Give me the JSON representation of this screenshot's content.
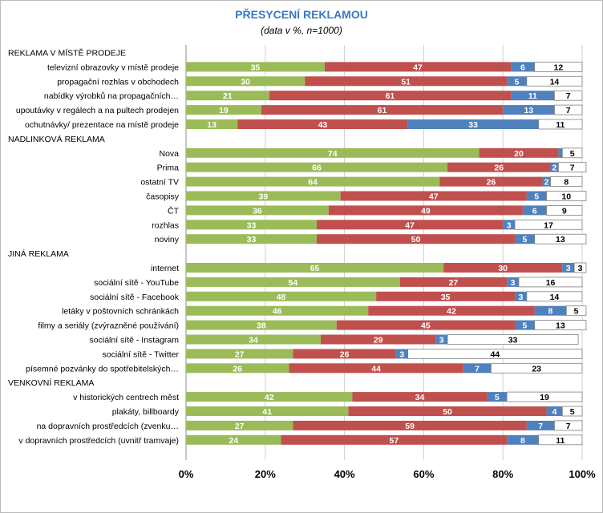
{
  "chart_data": {
    "type": "bar",
    "orientation": "horizontal",
    "stacked": true,
    "title": "PŘESYCENÍ REKLAMOU",
    "subtitle": "(data v %, n=1000)",
    "xlim": [
      0,
      100
    ],
    "x_ticks": [
      "0%",
      "20%",
      "40%",
      "60%",
      "80%",
      "100%"
    ],
    "grid": true,
    "legend": "none",
    "colors": [
      "#9bbb59",
      "#c0504d",
      "#4f81bd",
      "#ffffff"
    ],
    "rows": [
      {
        "label": "REKLAMA V MÍSTĚ PRODEJE",
        "header": true
      },
      {
        "label": "televizní obrazovky v místě prodeje",
        "values": [
          35,
          47,
          6,
          12
        ]
      },
      {
        "label": "propagační rozhlas v obchodech",
        "values": [
          30,
          51,
          5,
          14
        ]
      },
      {
        "label": "nabídky výrobků na propagačních…",
        "values": [
          21,
          61,
          11,
          7
        ]
      },
      {
        "label": "upoutávky v regálech a na pultech prodejen",
        "values": [
          19,
          61,
          13,
          7
        ]
      },
      {
        "label": "ochutnávky/ prezentace na místě prodeje",
        "values": [
          13,
          43,
          33,
          11
        ]
      },
      {
        "label": "NADLINKOVÁ REKLAMA",
        "header": true
      },
      {
        "label": "Nova",
        "values": [
          74,
          20,
          1,
          5
        ]
      },
      {
        "label": "Prima",
        "values": [
          66,
          26,
          2,
          7
        ]
      },
      {
        "label": "ostatní TV",
        "values": [
          64,
          26,
          2,
          8
        ]
      },
      {
        "label": "časopisy",
        "values": [
          39,
          47,
          5,
          10
        ]
      },
      {
        "label": "ČT",
        "values": [
          36,
          49,
          6,
          9
        ]
      },
      {
        "label": "rozhlas",
        "values": [
          33,
          47,
          3,
          17
        ]
      },
      {
        "label": "noviny",
        "values": [
          33,
          50,
          5,
          13
        ]
      },
      {
        "label": "JINÁ REKLAMA",
        "header": true
      },
      {
        "label": "internet",
        "values": [
          65,
          30,
          3,
          3
        ]
      },
      {
        "label": "sociální sítě - YouTube",
        "values": [
          54,
          27,
          3,
          16
        ]
      },
      {
        "label": "sociální sítě - Facebook",
        "values": [
          48,
          35,
          3,
          14
        ]
      },
      {
        "label": "letáky v poštovních schránkách",
        "values": [
          46,
          42,
          8,
          5
        ]
      },
      {
        "label": "filmy a seriály (zvýrazněné používání)",
        "values": [
          38,
          45,
          5,
          13
        ]
      },
      {
        "label": "sociální sítě - Instagram",
        "values": [
          34,
          29,
          3,
          33
        ]
      },
      {
        "label": "sociální sítě - Twitter",
        "values": [
          27,
          26,
          3,
          44
        ]
      },
      {
        "label": "písemné pozvánky do spotřebitelských…",
        "values": [
          26,
          44,
          7,
          23
        ]
      },
      {
        "label": "VENKOVNÍ REKLAMA",
        "header": true
      },
      {
        "label": "v historických centrech měst",
        "values": [
          42,
          34,
          5,
          19
        ]
      },
      {
        "label": "plakáty, billboardy",
        "values": [
          41,
          50,
          4,
          5
        ]
      },
      {
        "label": "na dopravních prostředcích (zvenku…",
        "values": [
          27,
          59,
          7,
          7
        ]
      },
      {
        "label": "v dopravních prostředcích (uvnitř tramvaje)",
        "values": [
          24,
          57,
          8,
          11
        ]
      }
    ]
  }
}
